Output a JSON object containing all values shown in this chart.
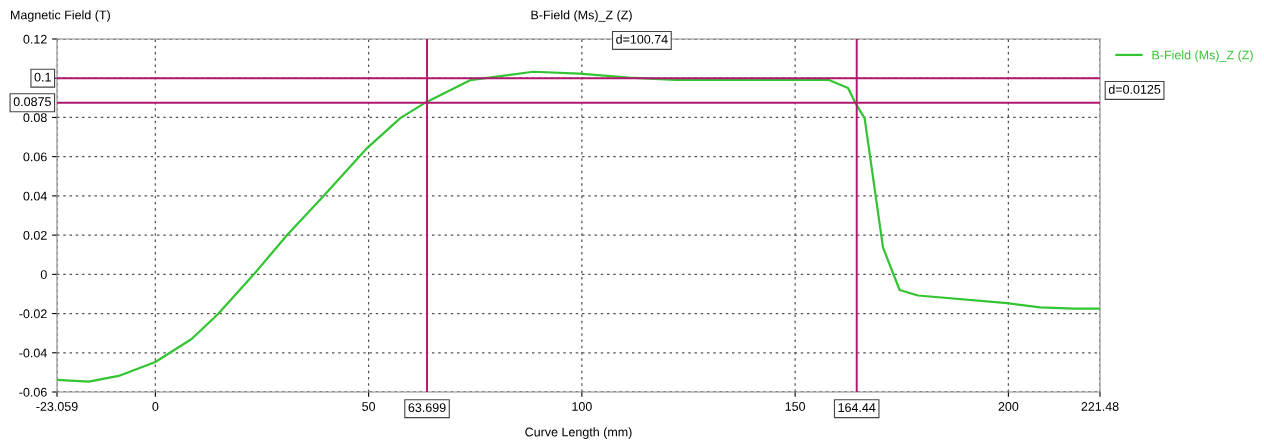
{
  "chart_data": {
    "type": "line",
    "title": "B-Field (Ms)_Z (Z)",
    "xlabel": "Curve Length (mm)",
    "ylabel": "Magnetic Field (T)",
    "x": [
      -23.059,
      -15.6,
      -8.6,
      0,
      8.5,
      14.7,
      23.2,
      31.0,
      39.6,
      49.7,
      57.5,
      63.5,
      73.8,
      88.6,
      99.4,
      111.1,
      122,
      157.8,
      162.4,
      164.1,
      166.3,
      170.6,
      174.5,
      178.8,
      199.7,
      207.5,
      215.3,
      221.48
    ],
    "series": [
      {
        "name": "B-Field (Ms)_Z (Z)",
        "color": "#33c433",
        "values": [
          -0.0538,
          -0.0547,
          -0.0518,
          -0.0447,
          -0.033,
          -0.0202,
          0.0003,
          0.0203,
          0.0403,
          0.0645,
          0.0798,
          0.0878,
          0.099,
          0.1033,
          0.1023,
          0.1003,
          0.0992,
          0.0992,
          0.095,
          0.0875,
          0.0795,
          0.0137,
          -0.008,
          -0.0108,
          -0.0147,
          -0.0168,
          -0.0175,
          -0.0175
        ]
      }
    ],
    "xlim": [
      -23.059,
      221.48
    ],
    "xticks": [
      -23.059,
      0,
      50,
      100,
      150,
      200,
      221.48
    ],
    "ylim": [
      -0.06,
      0.12
    ],
    "yticks": [
      -0.06,
      -0.04,
      -0.02,
      0,
      0.02,
      0.04,
      0.06,
      0.08,
      {
        "value": 0.1,
        "label": null
      },
      0.12
    ],
    "ref_lines": [
      {
        "axis": "x",
        "value": 63.699,
        "label": "63.699",
        "color": "#b0186e"
      },
      {
        "axis": "x",
        "value": 164.44,
        "label": "164.44",
        "color": "#b0186e"
      },
      {
        "axis": "y",
        "value": 0.1,
        "label": "0.1",
        "color": "#b0186e"
      },
      {
        "axis": "y",
        "value": 0.0875,
        "label": "0.0875",
        "color": "#b0186e"
      }
    ],
    "annotations": [
      "d=100.74",
      "d=0.0125"
    ],
    "grid": true,
    "legend": "top right",
    "line_style": "solid",
    "marker": "none"
  }
}
